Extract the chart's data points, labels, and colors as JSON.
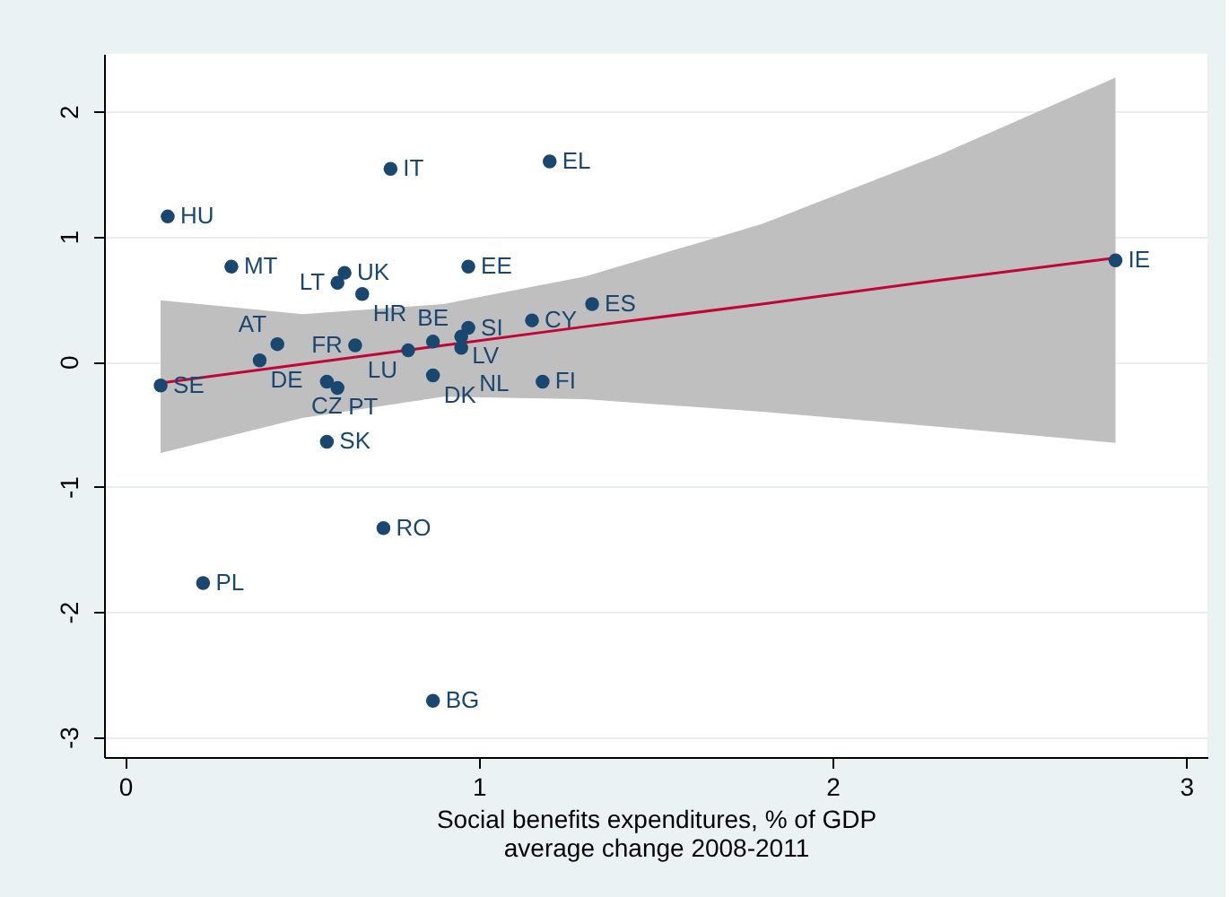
{
  "chart_data": {
    "type": "scatter",
    "xlabel": "Social benefits expenditures, % of GDP\naverage change 2008-2011",
    "xlim": [
      -0.06,
      3.06
    ],
    "ylim": [
      -3.16,
      2.46
    ],
    "xticks": [
      0,
      1,
      2,
      3
    ],
    "yticks": [
      {
        "value": -3,
        "label": "-3"
      },
      {
        "value": -2,
        "label": "-2"
      },
      {
        "value": -1,
        "label": "-1"
      },
      0,
      1,
      2
    ],
    "grid": "y",
    "marker": "circle",
    "series": [
      {
        "type": "line",
        "marker": "none",
        "color": "#c10534",
        "x": [
          0.1,
          0.5,
          0.9,
          1.3,
          1.8,
          2.3,
          2.8
        ],
        "values": [
          -0.17,
          -0.02,
          0.13,
          0.28,
          0.46,
          0.65,
          0.83
        ],
        "lower": [
          -0.73,
          -0.45,
          -0.28,
          -0.3,
          -0.4,
          -0.52,
          -0.65
        ],
        "upper": [
          0.49,
          0.38,
          0.46,
          0.68,
          1.1,
          1.65,
          2.27
        ]
      },
      {
        "color": "#1a476f",
        "x": [
          0.12,
          0.75,
          1.2,
          0.3,
          0.62,
          0.6,
          0.67,
          0.97,
          1.32,
          2.8,
          1.15,
          0.97,
          0.95,
          0.95,
          0.87,
          0.8,
          0.65,
          0.43,
          0.38,
          0.1,
          0.57,
          0.6,
          0.87,
          1.18,
          0.57,
          0.73,
          0.22,
          0.87
        ],
        "values": [
          1.16,
          1.54,
          1.6,
          0.76,
          0.71,
          0.63,
          0.54,
          0.76,
          0.46,
          0.81,
          0.33,
          0.27,
          0.2,
          0.11,
          0.16,
          0.09,
          0.13,
          0.14,
          0.01,
          -0.19,
          -0.16,
          -0.21,
          -0.11,
          -0.16,
          -0.64,
          -1.33,
          -1.77,
          -2.71
        ]
      }
    ],
    "annotations": [
      {
        "text": "HU",
        "x": 0.12,
        "y": 1.16
      },
      {
        "text": "IT",
        "x": 0.75,
        "y": 1.54
      },
      {
        "text": "EL",
        "x": 1.2,
        "y": 1.6
      },
      {
        "text": "MT",
        "x": 0.3,
        "y": 0.76
      },
      {
        "text": "UK",
        "x": 0.62,
        "y": 0.71
      },
      {
        "text": "LT",
        "x": 0.6,
        "y": 0.63
      },
      {
        "text": "HR",
        "x": 0.67,
        "y": 0.54
      },
      {
        "text": "EE",
        "x": 0.97,
        "y": 0.76
      },
      {
        "text": "ES",
        "x": 1.32,
        "y": 0.46
      },
      {
        "text": "IE",
        "x": 2.8,
        "y": 0.81
      },
      {
        "text": "CY",
        "x": 1.15,
        "y": 0.33
      },
      {
        "text": "SI",
        "x": 0.97,
        "y": 0.27
      },
      {
        "text": "LV",
        "x": 0.95,
        "y": 0.2
      },
      {
        "text": "NL",
        "x": 0.95,
        "y": 0.11
      },
      {
        "text": "BE",
        "x": 0.87,
        "y": 0.16
      },
      {
        "text": "LU",
        "x": 0.8,
        "y": 0.09
      },
      {
        "text": "FR",
        "x": 0.65,
        "y": 0.13
      },
      {
        "text": "AT",
        "x": 0.43,
        "y": 0.14
      },
      {
        "text": "DE",
        "x": 0.38,
        "y": 0.01
      },
      {
        "text": "SE",
        "x": 0.1,
        "y": -0.19
      },
      {
        "text": "CZ",
        "x": 0.57,
        "y": -0.16
      },
      {
        "text": "PT",
        "x": 0.6,
        "y": -0.21
      },
      {
        "text": "DK",
        "x": 0.87,
        "y": -0.11
      },
      {
        "text": "FI",
        "x": 1.18,
        "y": -0.16
      },
      {
        "text": "SK",
        "x": 0.57,
        "y": -0.64
      },
      {
        "text": "RO",
        "x": 0.73,
        "y": -1.33
      },
      {
        "text": "PL",
        "x": 0.22,
        "y": -1.77
      },
      {
        "text": "BG",
        "x": 0.87,
        "y": -2.71
      }
    ]
  }
}
